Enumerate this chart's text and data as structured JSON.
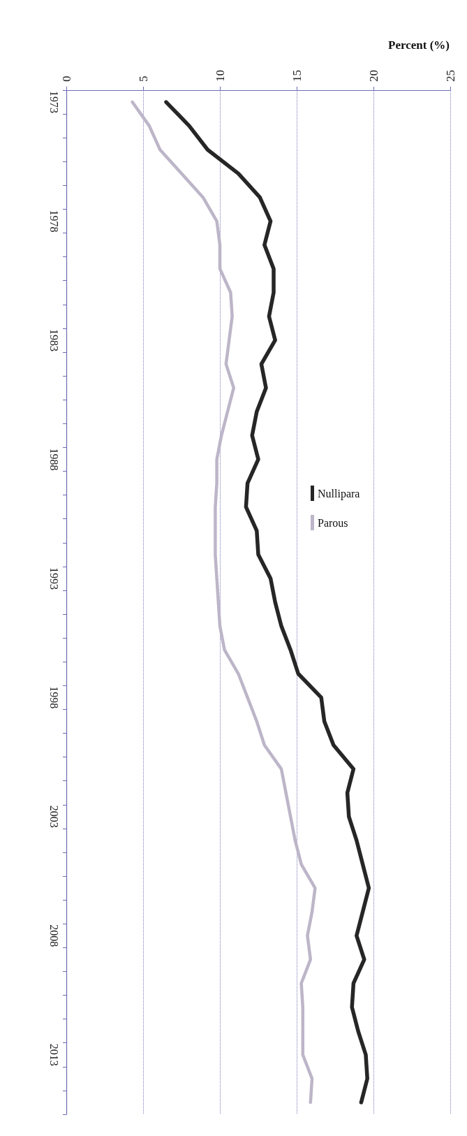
{
  "chart_data": {
    "type": "line",
    "orientation": "horizontal",
    "xlabel": "Percent (%)",
    "categories": [
      "1973",
      null,
      null,
      null,
      null,
      "1978",
      null,
      null,
      null,
      null,
      "1983",
      null,
      null,
      null,
      null,
      "1988",
      null,
      null,
      null,
      null,
      "1993",
      null,
      null,
      null,
      null,
      "1998",
      null,
      null,
      null,
      null,
      "2003",
      null,
      null,
      null,
      null,
      "2008",
      null,
      null,
      null,
      null,
      "2013",
      null,
      null
    ],
    "series": [
      {
        "name": "Nullipara",
        "color": "#262626",
        "values": [
          6.5,
          8.0,
          9.2,
          11.2,
          12.6,
          13.3,
          12.9,
          13.5,
          13.5,
          13.2,
          13.6,
          12.7,
          13.0,
          12.4,
          12.1,
          12.5,
          11.8,
          11.7,
          12.4,
          12.5,
          13.3,
          13.6,
          14.0,
          14.6,
          15.1,
          16.6,
          16.8,
          17.4,
          18.7,
          18.3,
          18.4,
          18.9,
          19.3,
          19.7,
          19.3,
          18.9,
          19.4,
          18.7,
          18.6,
          19.0,
          19.5,
          19.6,
          19.2
        ]
      },
      {
        "name": "Parous",
        "color": "#bdb5c8",
        "values": [
          4.3,
          5.4,
          6.1,
          7.5,
          8.9,
          9.8,
          10.0,
          10.0,
          10.7,
          10.8,
          10.6,
          10.4,
          10.9,
          10.5,
          10.1,
          9.8,
          9.8,
          9.7,
          9.7,
          9.7,
          9.8,
          9.9,
          10.0,
          10.3,
          11.2,
          11.8,
          12.4,
          12.9,
          14.0,
          14.3,
          14.6,
          14.9,
          15.3,
          16.2,
          16.0,
          15.7,
          15.9,
          15.3,
          15.4,
          15.4,
          15.4,
          16.0,
          15.9
        ]
      }
    ],
    "xlim": [
      0,
      25
    ],
    "xticks": [
      0,
      5,
      10,
      15,
      20,
      25
    ],
    "grid": "x",
    "legend": "center"
  }
}
